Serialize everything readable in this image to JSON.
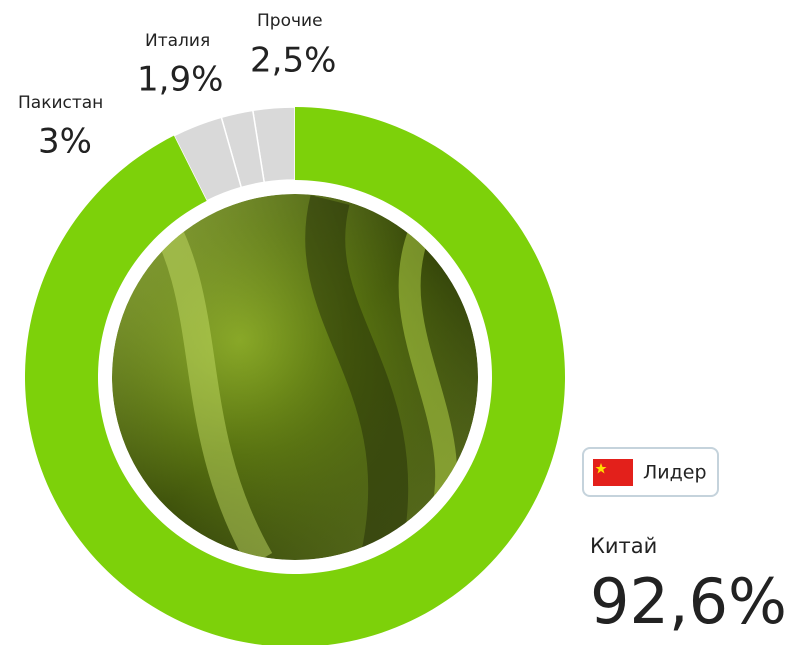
{
  "chart_data": {
    "type": "donut",
    "categories": [
      "Китай",
      "Пакистан",
      "Италия",
      "Прочие"
    ],
    "values": [
      92.6,
      3,
      1.9,
      2.5
    ],
    "value_labels": [
      "92,6%",
      "3%",
      "1,9%",
      "2,5%"
    ],
    "colors": [
      "#7dd10a",
      "#d9d9d9",
      "#d9d9d9",
      "#d9d9d9"
    ],
    "annotation": "Лидер"
  }
}
